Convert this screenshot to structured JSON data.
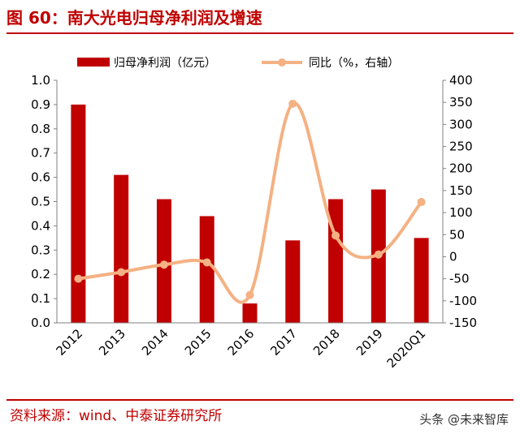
{
  "header": {
    "title": "图 60：南大光电归母净利润及增速"
  },
  "footer": {
    "source": "资料来源：wind、中泰证券研究所",
    "watermark": "头条 @未来智库"
  },
  "colors": {
    "bar": "#c00000",
    "line": "#f4b183",
    "accent": "#c00000"
  },
  "chart_data": {
    "type": "bar",
    "categories": [
      "2012",
      "2013",
      "2014",
      "2015",
      "2016",
      "2017",
      "2018",
      "2019",
      "2020Q1"
    ],
    "series": [
      {
        "name": "归母净利润（亿元）",
        "type": "bar",
        "axis": "left",
        "values": [
          0.9,
          0.61,
          0.51,
          0.44,
          0.08,
          0.34,
          0.51,
          0.55,
          0.35
        ]
      },
      {
        "name": "同比（%，右轴）",
        "type": "line",
        "axis": "right",
        "smooth": true,
        "values": [
          -50,
          -35,
          -18,
          -13,
          -87,
          347,
          48,
          5,
          124
        ]
      }
    ],
    "ylim_left": [
      0,
      1.0
    ],
    "yticks_left": [
      "0.0",
      "0.1",
      "0.2",
      "0.3",
      "0.4",
      "0.5",
      "0.6",
      "0.7",
      "0.8",
      "0.9",
      "1.0"
    ],
    "ylim_right": [
      -150,
      400
    ],
    "yticks_right": [
      "-150",
      "-100",
      "-50",
      "0",
      "50",
      "100",
      "150",
      "200",
      "250",
      "300",
      "350",
      "400"
    ],
    "legend": "top",
    "grid": false
  }
}
